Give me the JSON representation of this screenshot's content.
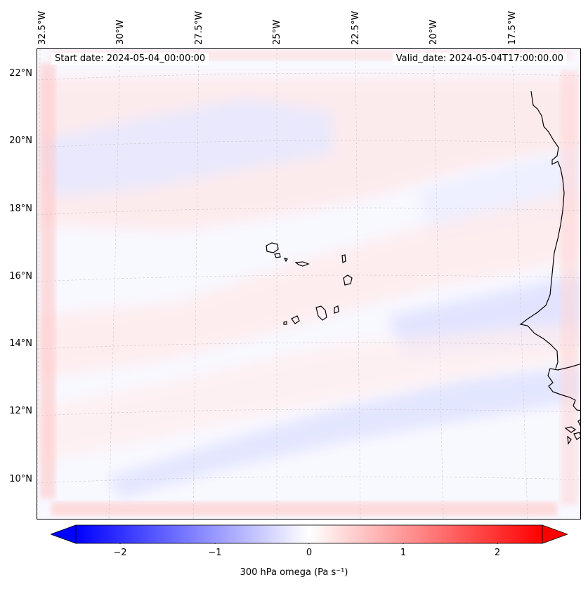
{
  "map": {
    "start_date_text": "Start date: 2024-05-04_00:00:00",
    "valid_date_text": "Valid_date: 2024-05-04T17:00:00.00",
    "lat_labels": [
      "22°N",
      "20°N",
      "18°N",
      "16°N",
      "14°N",
      "12°N",
      "10°N"
    ],
    "lon_labels": [
      "32.5°W",
      "30°W",
      "27.5°W",
      "25°W",
      "22.5°W",
      "20°W",
      "17.5°W"
    ],
    "colormap": "bwr",
    "background_color": "#f8f8ff",
    "coastline_color": "#000000",
    "gridline_style": "dashed light grey"
  },
  "colorbar": {
    "label_text": "300 hPa omega (Pa s⁻¹)",
    "ticks": [
      "−2",
      "−1",
      "0",
      "1",
      "2"
    ],
    "range": [
      -2.75,
      2.75
    ],
    "extend": "both",
    "colors": {
      "min": "#0000ff",
      "mid": "#ffffff",
      "max": "#ff0000"
    }
  }
}
